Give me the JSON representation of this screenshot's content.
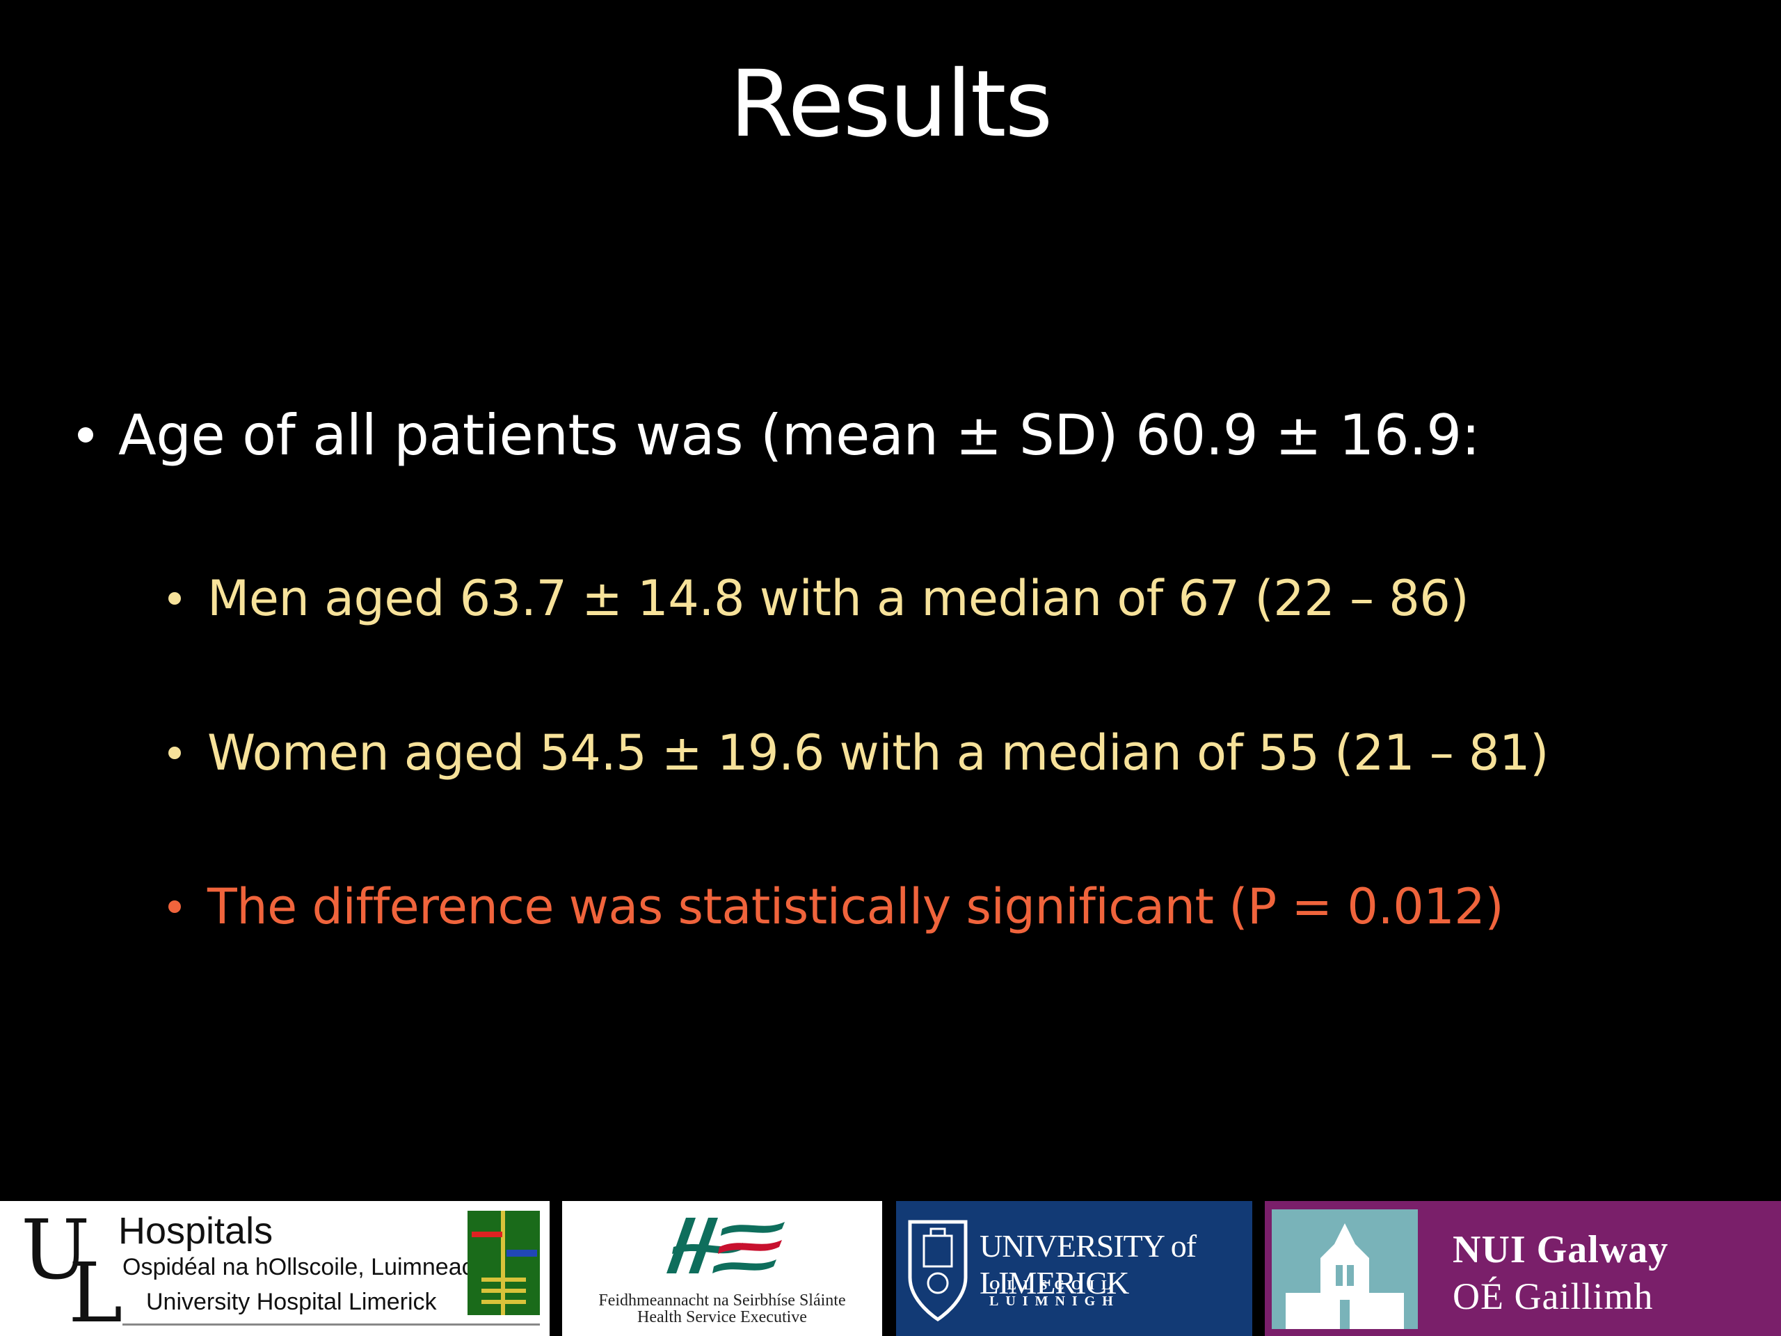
{
  "slide": {
    "title": "Results",
    "bullets": [
      {
        "text": "Age of all patients was (mean ± SD) 60.9 ± 16.9:"
      }
    ],
    "sub_bullets": [
      {
        "text": "Men aged 63.7 ± 14.8 with a median of 67 (22 – 86)",
        "color": "#f7e29a"
      },
      {
        "text": "Women aged 54.5 ± 19.6 with a median of 55 (21 – 81)",
        "color": "#f7e29a"
      },
      {
        "text": "The difference was statistically significant (P = 0.012)",
        "color": "#f0643c"
      }
    ]
  },
  "logos": {
    "ul_hospitals": {
      "letters_u": "U",
      "letters_l": "L",
      "name": "Hospitals",
      "irish": "Ospidéal na hOllscoile, Luimneach",
      "english": "University Hospital Limerick"
    },
    "hse": {
      "line1": "Feidhmeannacht na Seirbhíse Sláinte",
      "line2": "Health Service Executive",
      "color_primary": "#0e6e5c",
      "color_accent": "#c8102e"
    },
    "university_of_limerick": {
      "name": "UNIVERSITY of LIMERICK",
      "irish": "OLLSCOIL LUIMNIGH",
      "background": "#123a75"
    },
    "nui_galway": {
      "line1": "NUI Galway",
      "line2": "OÉ Gaillimh",
      "background": "#7a1f6a"
    }
  }
}
